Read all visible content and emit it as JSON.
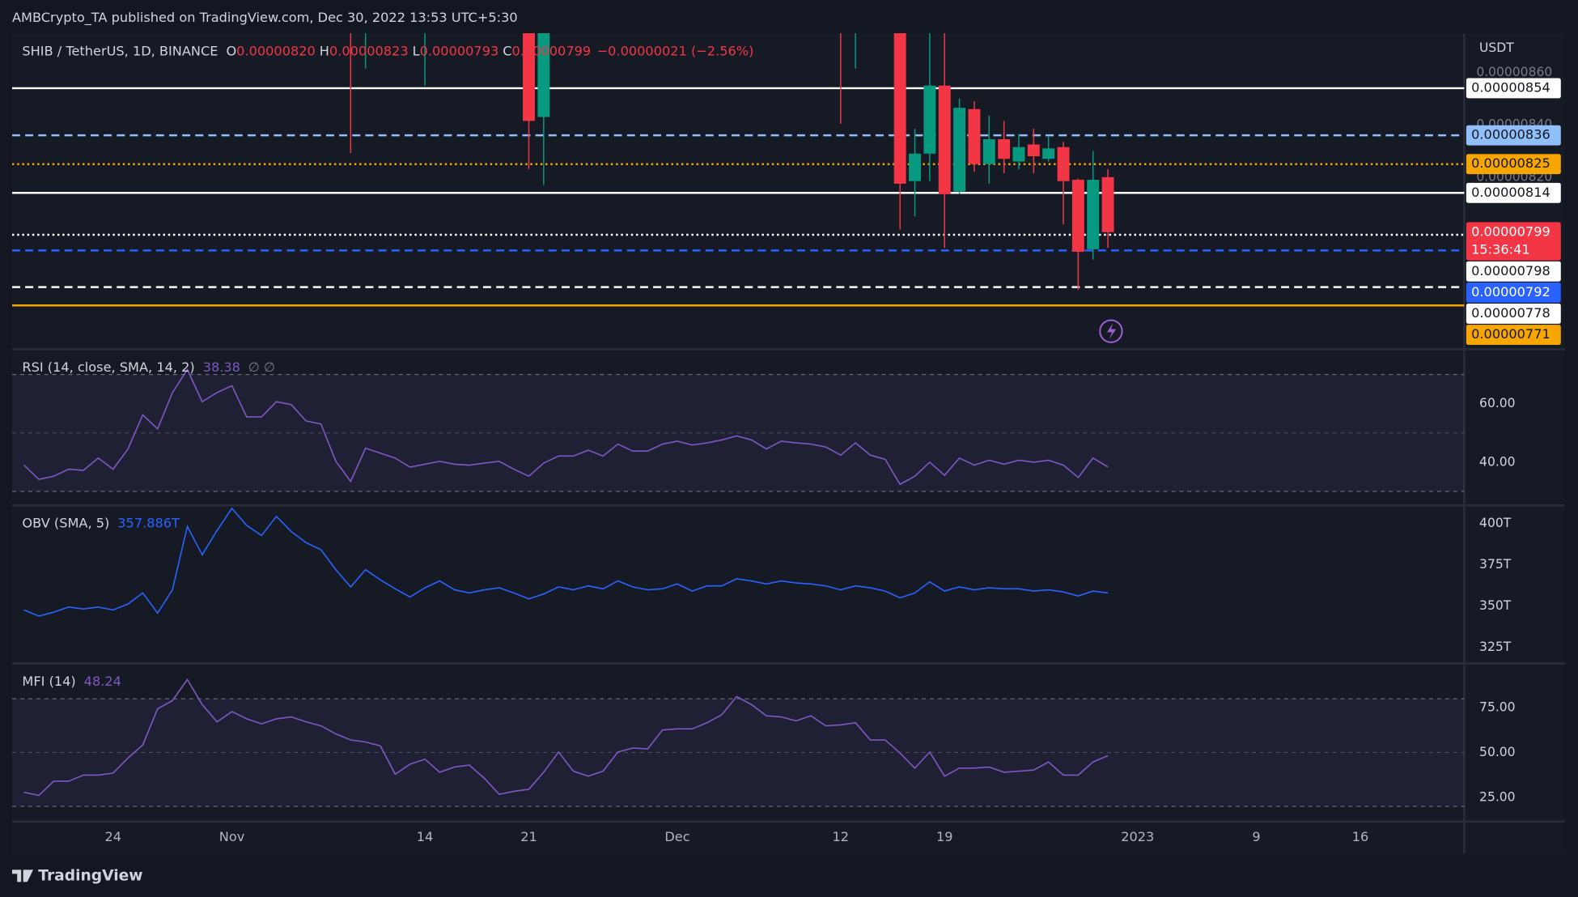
{
  "header": {
    "publisher": "AMBCrypto_TA published on TradingView.com, Dec 30, 2022 13:53 UTC+5:30"
  },
  "footer": {
    "brand": "TradingView"
  },
  "xaxis": {
    "xlim": [
      -0.8,
      97
    ],
    "xticks": [
      {
        "value": 6,
        "label": "24"
      },
      {
        "value": 14,
        "label": "Nov"
      },
      {
        "value": 27,
        "label": "14"
      },
      {
        "value": 34,
        "label": "21"
      },
      {
        "value": 44,
        "label": "Dec"
      },
      {
        "value": 55,
        "label": "12"
      },
      {
        "value": 62,
        "label": "19"
      },
      {
        "value": 75,
        "label": "2023"
      },
      {
        "value": 83,
        "label": "9"
      },
      {
        "value": 90,
        "label": "16"
      }
    ]
  },
  "chart_data": [
    {
      "type": "candlestick",
      "title": "SHIB / TetherUS, 1D, BINANCE",
      "ohlc": [
        {
          "label": "O",
          "value": "0.00000820"
        },
        {
          "label": "H",
          "value": "0.00000823"
        },
        {
          "label": "L",
          "value": "0.00000793"
        },
        {
          "label": "C",
          "value": "0.00000799"
        }
      ],
      "change": "−0.00000021 (−2.56%)",
      "axis_label": "USDT",
      "up_color": "#089981",
      "down_color": "#f23645",
      "ylim": [
        7.55e-06,
        8.75e-06
      ],
      "yticks": [
        {
          "value": 8.6e-06,
          "label": "0.00000860"
        },
        {
          "value": 8.4e-06,
          "label": "0.00000840"
        },
        {
          "value": 8.2e-06,
          "label": "0.00000820"
        }
      ],
      "candles": [
        {
          "x": 22,
          "open": 9e-06,
          "high": 9.1e-06,
          "low": 8.292e-06,
          "close": 8.9e-06
        },
        {
          "x": 23,
          "open": 8.9e-06,
          "high": 9.1e-06,
          "low": 8.615e-06,
          "close": 9e-06
        },
        {
          "x": 27,
          "open": 8.9e-06,
          "high": 9.1e-06,
          "low": 8.55e-06,
          "close": 9e-06
        },
        {
          "x": 34,
          "open": 8.9e-06,
          "high": 9e-06,
          "low": 8.23e-06,
          "close": 8.415e-06
        },
        {
          "x": 35,
          "open": 8.43e-06,
          "high": 9e-06,
          "low": 8.17e-06,
          "close": 8.9e-06
        },
        {
          "x": 55,
          "open": 9e-06,
          "high": 9.1e-06,
          "low": 8.404e-06,
          "close": 8.9e-06
        },
        {
          "x": 56,
          "open": 8.9e-06,
          "high": 9.1e-06,
          "low": 8.615e-06,
          "close": 9e-06
        },
        {
          "x": 59,
          "open": 8.9e-06,
          "high": 9e-06,
          "low": 8e-06,
          "close": 8.175e-06
        },
        {
          "x": 60,
          "open": 8.185e-06,
          "high": 8.385e-06,
          "low": 8.05e-06,
          "close": 8.29e-06
        },
        {
          "x": 61,
          "open": 8.29e-06,
          "high": 8.9e-06,
          "low": 8.185e-06,
          "close": 8.55e-06
        },
        {
          "x": 62,
          "open": 8.55e-06,
          "high": 8.9e-06,
          "low": 7.93e-06,
          "close": 8.135e-06
        },
        {
          "x": 63,
          "open": 8.145e-06,
          "high": 8.5e-06,
          "low": 8.135e-06,
          "close": 8.465e-06
        },
        {
          "x": 64,
          "open": 8.46e-06,
          "high": 8.49e-06,
          "low": 8.22e-06,
          "close": 8.25e-06
        },
        {
          "x": 65,
          "open": 8.25e-06,
          "high": 8.435e-06,
          "low": 8.175e-06,
          "close": 8.345e-06
        },
        {
          "x": 66,
          "open": 8.345e-06,
          "high": 8.415e-06,
          "low": 8.215e-06,
          "close": 8.27e-06
        },
        {
          "x": 67,
          "open": 8.26e-06,
          "high": 8.365e-06,
          "low": 8.23e-06,
          "close": 8.315e-06
        },
        {
          "x": 68,
          "open": 8.325e-06,
          "high": 8.385e-06,
          "low": 8.215e-06,
          "close": 8.28e-06
        },
        {
          "x": 69,
          "open": 8.27e-06,
          "high": 8.355e-06,
          "low": 8.26e-06,
          "close": 8.31e-06
        },
        {
          "x": 70,
          "open": 8.315e-06,
          "high": 8.335e-06,
          "low": 8.02e-06,
          "close": 8.185e-06
        },
        {
          "x": 71,
          "open": 8.19e-06,
          "high": 8.195e-06,
          "low": 7.77e-06,
          "close": 7.915e-06
        },
        {
          "x": 72,
          "open": 7.925e-06,
          "high": 8.3e-06,
          "low": 7.885e-06,
          "close": 8.19e-06
        },
        {
          "x": 73,
          "open": 8.2e-06,
          "high": 8.23e-06,
          "low": 7.93e-06,
          "close": 7.99e-06
        }
      ],
      "levels": [
        {
          "value": 8.54e-06,
          "label": "0.00000854",
          "color": "#ffffff",
          "style": "solid",
          "text_color": "#131722"
        },
        {
          "value": 8.36e-06,
          "label": "0.00000836",
          "color": "#90bff9",
          "style": "dashed",
          "text_color": "#131722"
        },
        {
          "value": 8.25e-06,
          "label": "0.00000825",
          "color": "#f7a600",
          "style": "dotted",
          "text_color": "#131722"
        },
        {
          "value": 8.14e-06,
          "label": "0.00000814",
          "color": "#ffffff",
          "style": "solid",
          "text_color": "#131722"
        },
        {
          "value": 7.98e-06,
          "label": "0.00000798",
          "color": "#ffffff",
          "style": "dotted",
          "text_color": "#131722"
        },
        {
          "value": 7.92e-06,
          "label": "0.00000792",
          "color": "#2962ff",
          "style": "dashed",
          "text_color": "#ffffff"
        },
        {
          "value": 7.78e-06,
          "label": "0.00000778",
          "color": "#ffffff",
          "style": "dashed",
          "text_color": "#131722"
        },
        {
          "value": 7.71e-06,
          "label": "0.00000771",
          "color": "#f7a600",
          "style": "solid",
          "text_color": "#131722"
        }
      ],
      "last_price": {
        "value": 7.99e-06,
        "label": "0.00000799",
        "countdown": "15:36:41",
        "color": "#f23645"
      }
    },
    {
      "type": "line",
      "title": "RSI (14, close, SMA, 14, 2)",
      "extra": "∅ ∅",
      "color": "#7e57c2",
      "ylim": [
        25.9,
        77.6
      ],
      "yticks": [
        {
          "value": 40,
          "label": "40.00"
        },
        {
          "value": 60,
          "label": "60.00"
        }
      ],
      "band": [
        30,
        70
      ],
      "midline": 50,
      "values": [
        39.0,
        34.1,
        35.2,
        37.6,
        37.2,
        41.4,
        37.6,
        44.5,
        56.2,
        51.4,
        63.8,
        71.7,
        60.7,
        63.8,
        66.2,
        55.5,
        55.5,
        60.7,
        59.7,
        54.1,
        53.1,
        40.3,
        33.4,
        44.8,
        43.1,
        41.4,
        38.3,
        39.3,
        40.3,
        39.3,
        39.0,
        39.7,
        40.3,
        37.6,
        35.2,
        39.7,
        42.1,
        42.1,
        44.1,
        42.1,
        46.2,
        43.8,
        43.8,
        46.2,
        47.2,
        45.9,
        46.6,
        47.6,
        49.0,
        47.6,
        44.5,
        47.2,
        46.6,
        46.2,
        45.2,
        42.4,
        46.6,
        42.4,
        41.0,
        32.4,
        35.2,
        40.0,
        35.5,
        41.4,
        39.0,
        40.7,
        39.3,
        40.7,
        40.0,
        40.7,
        39.0,
        34.8,
        41.4,
        38.38
      ]
    },
    {
      "type": "line",
      "title": "OBV (SMA, 5)",
      "readout": "357.886T",
      "color": "#2962ff",
      "ylim": [
        317.7,
        409.1
      ],
      "yticks": [
        {
          "value": 400,
          "label": "400T"
        },
        {
          "value": 375,
          "label": "375T"
        },
        {
          "value": 350,
          "label": "350T"
        },
        {
          "value": 325,
          "label": "325T"
        }
      ],
      "values": [
        347.6,
        343.9,
        346.3,
        349.4,
        348.2,
        349.4,
        347.6,
        351.2,
        357.9,
        345.7,
        359.8,
        398.2,
        381.1,
        395.7,
        409.1,
        398.8,
        392.7,
        404.3,
        395.1,
        388.4,
        384.1,
        372.0,
        361.6,
        372.0,
        365.9,
        360.4,
        355.5,
        361.0,
        365.2,
        359.8,
        357.9,
        359.8,
        361.0,
        357.9,
        354.3,
        357.3,
        361.6,
        359.8,
        362.2,
        360.4,
        365.2,
        361.6,
        359.8,
        360.4,
        363.4,
        359.1,
        362.2,
        362.2,
        366.5,
        365.2,
        363.4,
        365.2,
        364.0,
        363.4,
        362.2,
        359.8,
        362.2,
        361.0,
        359.1,
        354.9,
        357.9,
        364.6,
        359.1,
        361.6,
        359.8,
        361.0,
        360.4,
        360.4,
        359.1,
        359.8,
        358.5,
        356.1,
        359.1,
        357.886
      ]
    },
    {
      "type": "line",
      "title": "MFI (14)",
      "color": "#7e57c2",
      "ylim": [
        12.1,
        98.0
      ],
      "yticks": [
        {
          "value": 75,
          "label": "75.00"
        },
        {
          "value": 50,
          "label": "50.00"
        },
        {
          "value": 25,
          "label": "25.00"
        }
      ],
      "band": [
        20,
        80
      ],
      "midline": 50,
      "values": [
        27.8,
        26.1,
        34.0,
        34.0,
        37.4,
        37.4,
        38.5,
        46.9,
        54.2,
        74.4,
        78.9,
        90.7,
        76.7,
        67.1,
        72.8,
        68.8,
        66.0,
        68.8,
        69.9,
        67.1,
        64.9,
        60.4,
        57.0,
        55.9,
        53.7,
        37.9,
        43.5,
        46.3,
        39.0,
        41.9,
        43.0,
        35.7,
        26.7,
        28.4,
        29.5,
        39.0,
        50.3,
        39.6,
        36.8,
        39.6,
        50.3,
        52.5,
        52.0,
        62.6,
        63.2,
        63.2,
        66.6,
        71.1,
        81.2,
        76.7,
        70.5,
        69.9,
        67.7,
        70.5,
        64.9,
        65.4,
        66.6,
        57.0,
        57.0,
        49.7,
        41.3,
        50.3,
        36.8,
        41.3,
        41.3,
        41.9,
        39.0,
        39.6,
        40.2,
        44.7,
        37.4,
        37.4,
        44.7,
        48.24
      ]
    }
  ]
}
